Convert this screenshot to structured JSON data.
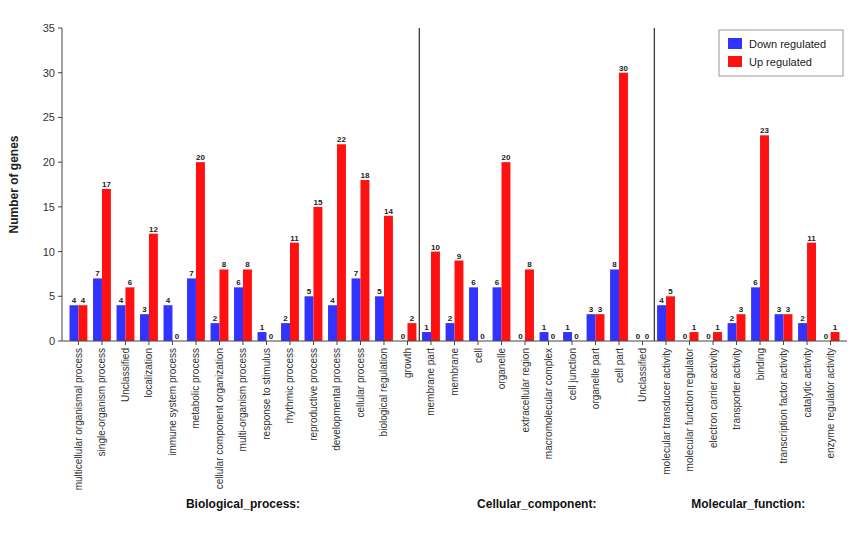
{
  "chart_data": {
    "type": "bar",
    "ylabel": "Number of genes",
    "categories": [
      "multicellular organismal process",
      "single-organism process",
      "Unclassified",
      "localization",
      "immune system process",
      "metabolic process",
      "cellular component organization",
      "multi-organism process",
      "response to stimulus",
      "rhythmic process",
      "reproductive process",
      "developmental process",
      "cellular process",
      "biological regulation",
      "growth",
      "membrane part",
      "membrane",
      "cell",
      "organelle",
      "extracellular region",
      "macromolecular complex",
      "cell junction",
      "organelle part",
      "cell part",
      "Unclassified",
      "molecular transducer activity",
      "molecular function regulator",
      "electron carrier activity",
      "transporter activity",
      "binding",
      "transcription factor activity",
      "catalytic activity",
      "enzyme regulator activity"
    ],
    "series": [
      {
        "name": "Down regulated",
        "color": "#3333ff",
        "values": [
          4,
          7,
          4,
          3,
          4,
          7,
          2,
          6,
          1,
          2,
          5,
          4,
          7,
          5,
          0,
          1,
          2,
          6,
          6,
          0,
          1,
          1,
          3,
          8,
          0,
          4,
          0,
          0,
          2,
          6,
          3,
          2,
          0
        ]
      },
      {
        "name": "Up regulated",
        "color": "#ff1111",
        "values": [
          4,
          17,
          6,
          12,
          0,
          20,
          8,
          8,
          0,
          11,
          15,
          22,
          18,
          14,
          2,
          10,
          9,
          0,
          20,
          8,
          0,
          0,
          3,
          30,
          0,
          5,
          1,
          1,
          3,
          23,
          3,
          11,
          1
        ]
      }
    ],
    "annotations": [
      {
        "text": "Biological_process:",
        "first_category": "multicellular organismal process"
      },
      {
        "text": "Cellular_component:",
        "first_category": "membrane part"
      },
      {
        "text": "Molecular_function:",
        "first_category": "molecular transducer activity"
      }
    ],
    "ylim": [
      0,
      35
    ],
    "yticks": [
      0,
      5,
      10,
      15,
      20,
      25,
      30,
      35
    ],
    "data_labels": true,
    "legend": "upper right",
    "grid": false
  }
}
